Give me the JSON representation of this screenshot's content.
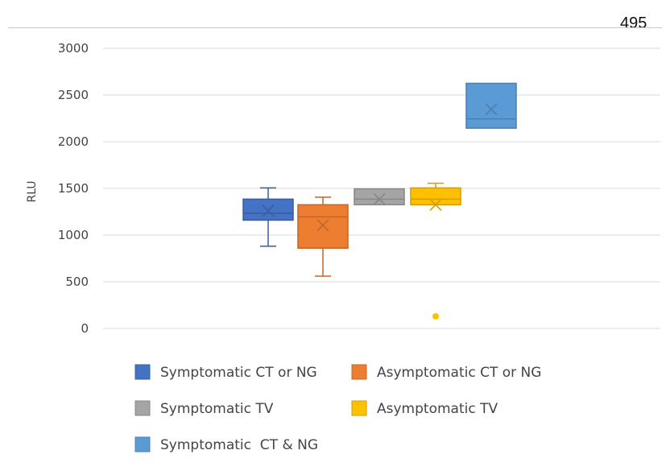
{
  "page": {
    "number": "495"
  },
  "chart_data": {
    "type": "box",
    "title": "",
    "xlabel": "",
    "ylabel": "RLU",
    "ylim": [
      0,
      3000
    ],
    "yticks": [
      0,
      500,
      1000,
      1500,
      2000,
      2500,
      3000
    ],
    "grid": true,
    "legend_position": "bottom",
    "series": [
      {
        "name": "Symptomatic CT or NG",
        "color": "#4472c4",
        "min": 880,
        "q1": 1160,
        "median": 1235,
        "q3": 1385,
        "max": 1505,
        "mean": 1260,
        "outliers": []
      },
      {
        "name": "Asymptomatic CT or NG",
        "color": "#ed7d31",
        "min": 560,
        "q1": 860,
        "median": 1195,
        "q3": 1325,
        "max": 1405,
        "mean": 1105,
        "outliers": []
      },
      {
        "name": "Symptomatic TV",
        "color": "#a5a5a5",
        "min": 1325,
        "q1": 1325,
        "median": 1385,
        "q3": 1495,
        "max": 1495,
        "mean": 1385,
        "outliers": []
      },
      {
        "name": "Asymptomatic TV",
        "color": "#ffc000",
        "min": 1325,
        "q1": 1325,
        "median": 1385,
        "q3": 1505,
        "max": 1555,
        "mean": 1325,
        "outliers": [
          130
        ]
      },
      {
        "name": "Symptomatic  CT & NG",
        "color": "#5b9bd5",
        "min": 2145,
        "q1": 2145,
        "median": 2245,
        "q3": 2625,
        "max": 2625,
        "mean": 2345,
        "outliers": []
      }
    ]
  }
}
